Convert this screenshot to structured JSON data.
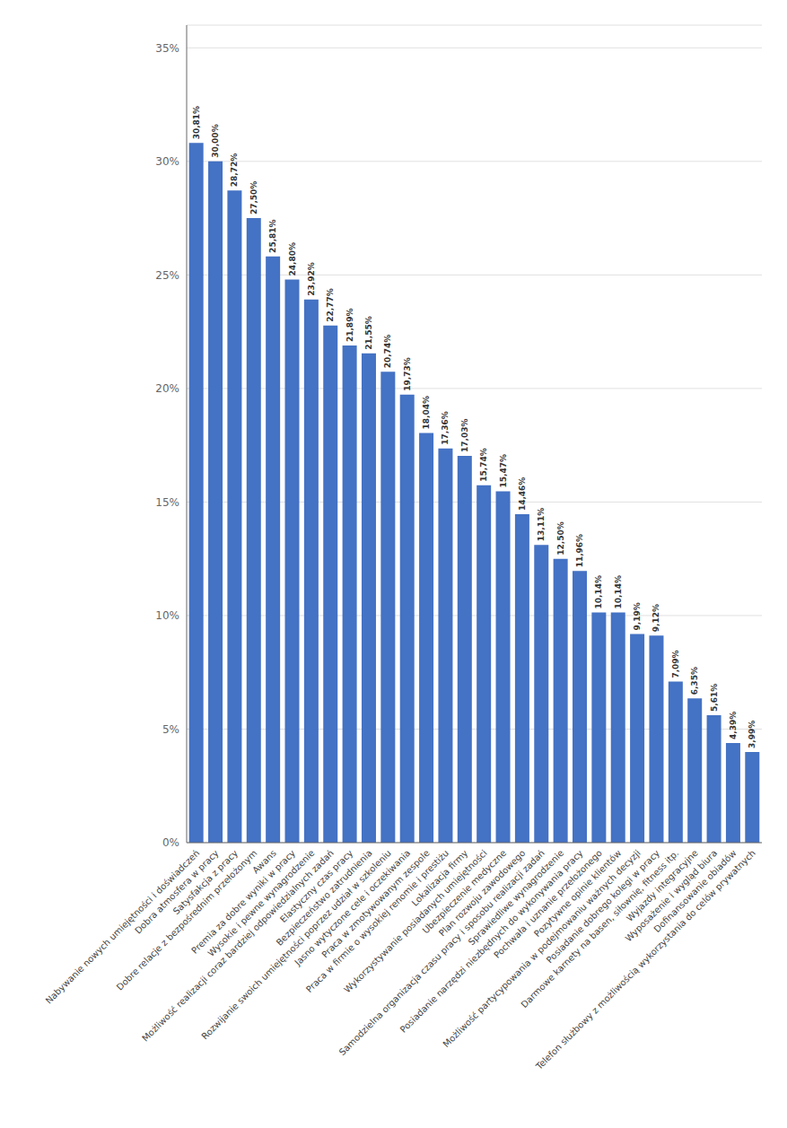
{
  "chart_data": {
    "type": "bar",
    "categories": [
      "Nabywanie nowych umiejętności i doświadczeń",
      "Dobra atmosfera w pracy",
      "Satysfakcja z pracy",
      "Dobre relacje z bezpośrednim przełożonym",
      "Awans",
      "Premia za dobre wyniki w pracy",
      "Wysokie i pewne wynagrodzenie",
      "Możliwość realizacji coraz bardziej odpowiedzialnych zadań",
      "Elastyczny czas pracy",
      "Bezpieczeństwo zatrudnienia",
      "Rozwijanie swoich umiejętności poprzez udział w szkoleniu",
      "Jasno wytyczone cele i oczekiwania",
      "Praca w zmotywowanym zespole",
      "Praca w firmie o wysokiej renomie i prestiżu",
      "Lokalizacja firmy",
      "Wykorzystywanie posiadanych umiejętności",
      "Ubezpieczenie medyczne",
      "Plan rozwoju zawodowego",
      "Samodzielna organizacja czasu pracy i sposobu realizacji zadań",
      "Sprawiedliwe wynagrodzenie",
      "Posiadanie narzędzi niezbędnych do wykonywania pracy",
      "Pochwała i uznanie przełożonego",
      "Pozytywne opinie klientów",
      "Możliwość partycypowania w podejmowaniu ważnych decyzji",
      "Posiadanie dobrego kolegi w pracy",
      "Darmowe karnety na basen, siłownię, fitness itp.",
      "Wyjazdy integracyjne",
      "Wyposażenie i wygląd biura",
      "Dofinansowanie obiadów",
      "Telefon służbowy z możliwością wykorzystania do celów prywatnych"
    ],
    "values": [
      30.81,
      30.0,
      28.72,
      27.5,
      25.81,
      24.8,
      23.92,
      22.77,
      21.89,
      21.55,
      20.74,
      19.73,
      18.04,
      17.36,
      17.03,
      15.74,
      15.47,
      14.46,
      13.11,
      12.5,
      11.96,
      10.14,
      10.14,
      9.19,
      9.12,
      7.09,
      6.35,
      5.61,
      4.39,
      3.99
    ],
    "value_labels": [
      "30,81%",
      "30,00%",
      "28,72%",
      "27,50%",
      "25,81%",
      "24,80%",
      "23,92%",
      "22,77%",
      "21,89%",
      "21,55%",
      "20,74%",
      "19,73%",
      "18,04%",
      "17,36%",
      "17,03%",
      "15,74%",
      "15,47%",
      "14,46%",
      "13,11%",
      "12,50%",
      "11,96%",
      "10,14%",
      "10,14%",
      "9,19%",
      "9,12%",
      "7,09%",
      "6,35%",
      "5,61%",
      "4,39%",
      "3,99%"
    ],
    "data_labels": true,
    "color": "#4472C4",
    "ylim": [
      0,
      36
    ],
    "yticks": [
      {
        "value": 0,
        "label": "0%"
      },
      {
        "value": 5,
        "label": "5%"
      },
      {
        "value": 10,
        "label": "10%"
      },
      {
        "value": 15,
        "label": "15%"
      },
      {
        "value": 20,
        "label": "20%"
      },
      {
        "value": 25,
        "label": "25%"
      },
      {
        "value": 30,
        "label": "30%"
      },
      {
        "value": 35,
        "label": "35%"
      }
    ],
    "grid": true
  }
}
